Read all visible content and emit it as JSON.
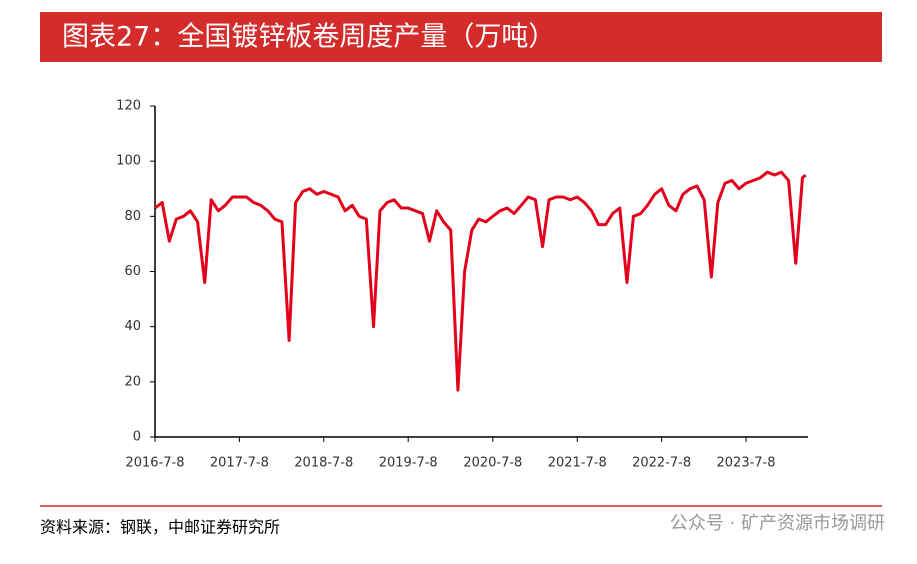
{
  "chart_data": {
    "type": "line",
    "title": "图表27：全国镀锌板卷周度产量（万吨）",
    "x": [
      "2016-7-8",
      "2016-8-8",
      "2016-9-8",
      "2016-10-8",
      "2016-11-8",
      "2016-12-8",
      "2017-1-8",
      "2017-2-8",
      "2017-3-8",
      "2017-4-8",
      "2017-5-8",
      "2017-6-8",
      "2017-7-8",
      "2017-8-8",
      "2017-9-8",
      "2017-10-8",
      "2017-11-8",
      "2017-12-8",
      "2018-1-8",
      "2018-2-8",
      "2018-3-8",
      "2018-4-8",
      "2018-5-8",
      "2018-6-8",
      "2018-7-8",
      "2018-8-8",
      "2018-9-8",
      "2018-10-8",
      "2018-11-8",
      "2018-12-8",
      "2019-1-8",
      "2019-2-8",
      "2019-3-8",
      "2019-4-8",
      "2019-5-8",
      "2019-6-8",
      "2019-7-8",
      "2019-8-8",
      "2019-9-8",
      "2019-10-8",
      "2019-11-8",
      "2019-12-8",
      "2020-1-8",
      "2020-2-8",
      "2020-3-8",
      "2020-4-8",
      "2020-5-8",
      "2020-6-8",
      "2020-7-8",
      "2020-8-8",
      "2020-9-8",
      "2020-10-8",
      "2020-11-8",
      "2020-12-8",
      "2021-1-8",
      "2021-2-8",
      "2021-3-8",
      "2021-4-8",
      "2021-5-8",
      "2021-6-8",
      "2021-7-8",
      "2021-8-8",
      "2021-9-8",
      "2021-10-8",
      "2021-11-8",
      "2021-12-8",
      "2022-1-8",
      "2022-2-8",
      "2022-3-8",
      "2022-4-8",
      "2022-5-8",
      "2022-6-8",
      "2022-7-8",
      "2022-8-8",
      "2022-9-8",
      "2022-10-8",
      "2022-11-8",
      "2022-12-8",
      "2023-1-8",
      "2023-2-8",
      "2023-3-8",
      "2023-4-8",
      "2023-5-8",
      "2023-6-8",
      "2023-7-8",
      "2023-8-8",
      "2023-9-8",
      "2023-10-8",
      "2023-11-8",
      "2023-12-8",
      "2024-1-8",
      "2024-2-8",
      "2024-3-8",
      "2024-3-22"
    ],
    "series": [
      {
        "name": "全国镀锌板卷周度产量",
        "color": "#e3001b",
        "values": [
          83,
          85,
          71,
          79,
          80,
          82,
          78,
          56,
          86,
          82,
          84,
          87,
          87,
          87,
          85,
          84,
          82,
          79,
          78,
          35,
          85,
          89,
          90,
          88,
          89,
          88,
          87,
          82,
          84,
          80,
          79,
          40,
          82,
          85,
          86,
          83,
          83,
          82,
          81,
          71,
          82,
          78,
          75,
          17,
          60,
          75,
          79,
          78,
          80,
          82,
          83,
          81,
          84,
          87,
          86,
          69,
          86,
          87,
          87,
          86,
          87,
          85,
          82,
          77,
          77,
          81,
          83,
          56,
          80,
          81,
          84,
          88,
          90,
          84,
          82,
          88,
          90,
          91,
          86,
          58,
          85,
          92,
          93,
          90,
          92,
          93,
          94,
          96,
          95,
          96,
          93,
          63,
          94,
          95
        ]
      }
    ],
    "xlim": [
      "2016-7-8",
      "2024-4-1"
    ],
    "xticks": [
      "2016-7-8",
      "2017-7-8",
      "2018-7-8",
      "2019-7-8",
      "2020-7-8",
      "2021-7-8",
      "2022-7-8",
      "2023-7-8"
    ],
    "ylim": [
      0,
      120
    ],
    "yticks": [
      0,
      20,
      40,
      60,
      80,
      100,
      120
    ],
    "grid": false
  },
  "source": "资料来源：钢联，中邮证券研究所",
  "watermark": "公众号 · 矿产资源市场调研"
}
